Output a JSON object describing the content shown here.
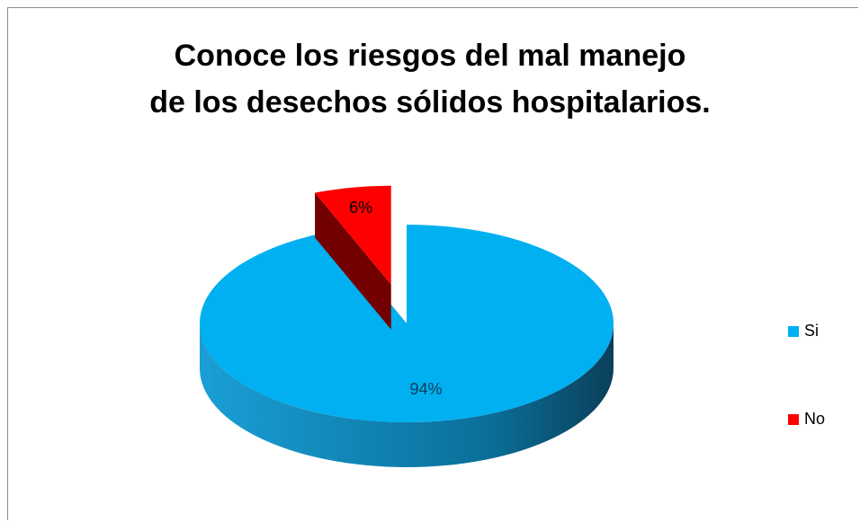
{
  "chart_data": {
    "type": "pie",
    "title": "Conoce los riesgos del mal manejo\nde los desechos sólidos hospitalarios.",
    "categories": [
      "Si",
      "No"
    ],
    "values": [
      94,
      6
    ],
    "value_labels": [
      "94%",
      "6%"
    ],
    "colors": [
      "#00b0f0",
      "#ff0000"
    ],
    "explode": [
      false,
      true
    ],
    "legend": "right"
  }
}
